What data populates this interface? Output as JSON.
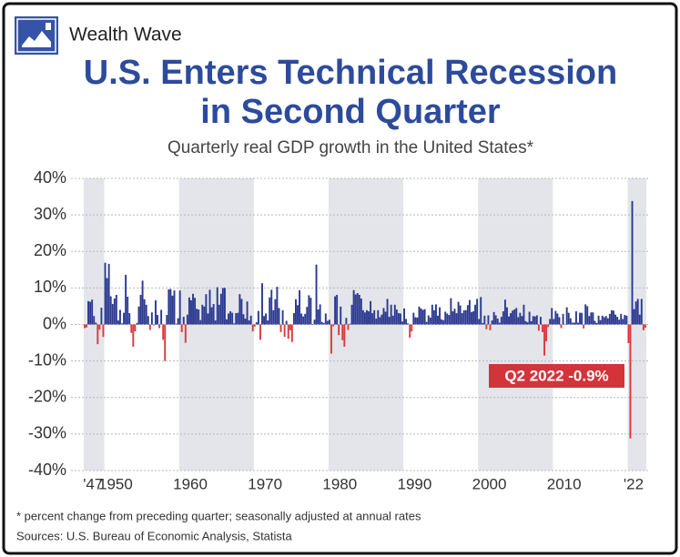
{
  "brand": "Wealth Wave",
  "chart_data": {
    "type": "bar",
    "title": [
      "U.S. Enters Technical Recession",
      "in Second Quarter"
    ],
    "subtitle": "Quarterly real GDP growth in the United States*",
    "annotation": "Q2 2022 -0.9%",
    "footnote": "* percent change from preceding quarter; seasonally adjusted at annual rates",
    "source": "Sources: U.S. Bureau of Economic Analysis, Statista",
    "color": "#2b3990",
    "negative_color": "#d93a3a",
    "grid": true,
    "xlim": [
      1947.25,
      2022.5
    ],
    "ylim": [
      -40,
      40
    ],
    "yticks": [
      {
        "value": -40,
        "label": "-40%"
      },
      {
        "value": -30,
        "label": "-30%"
      },
      {
        "value": -20,
        "label": "-20%"
      },
      {
        "value": -10,
        "label": "-10%"
      },
      {
        "value": 0,
        "label": "0%"
      },
      {
        "value": 10,
        "label": "10%"
      },
      {
        "value": 20,
        "label": "20%"
      },
      {
        "value": 30,
        "label": "30%"
      },
      {
        "value": 40,
        "label": "40%"
      }
    ],
    "xticks": [
      {
        "value": 1947,
        "label": "'47"
      },
      1950,
      1960,
      1970,
      1980,
      1990,
      2000,
      2010,
      {
        "value": 2022,
        "label": "'22"
      }
    ],
    "x": [
      1947.25,
      1947.5,
      1947.75,
      1948,
      1948.25,
      1948.5,
      1948.75,
      1949,
      1949.25,
      1949.5,
      1949.75,
      1950,
      1950.25,
      1950.5,
      1950.75,
      1951,
      1951.25,
      1951.5,
      1951.75,
      1952,
      1952.25,
      1952.5,
      1952.75,
      1953,
      1953.25,
      1953.5,
      1953.75,
      1954,
      1954.25,
      1954.5,
      1954.75,
      1955,
      1955.25,
      1955.5,
      1955.75,
      1956,
      1956.25,
      1956.5,
      1956.75,
      1957,
      1957.25,
      1957.5,
      1957.75,
      1958,
      1958.25,
      1958.5,
      1958.75,
      1959,
      1959.25,
      1959.5,
      1959.75,
      1960,
      1960.25,
      1960.5,
      1960.75,
      1961,
      1961.25,
      1961.5,
      1961.75,
      1962,
      1962.25,
      1962.5,
      1962.75,
      1963,
      1963.25,
      1963.5,
      1963.75,
      1964,
      1964.25,
      1964.5,
      1964.75,
      1965,
      1965.25,
      1965.5,
      1965.75,
      1966,
      1966.25,
      1966.5,
      1966.75,
      1967,
      1967.25,
      1967.5,
      1967.75,
      1968,
      1968.25,
      1968.5,
      1968.75,
      1969,
      1969.25,
      1969.5,
      1969.75,
      1970,
      1970.25,
      1970.5,
      1970.75,
      1971,
      1971.25,
      1971.5,
      1971.75,
      1972,
      1972.25,
      1972.5,
      1972.75,
      1973,
      1973.25,
      1973.5,
      1973.75,
      1974,
      1974.25,
      1974.5,
      1974.75,
      1975,
      1975.25,
      1975.5,
      1975.75,
      1976,
      1976.25,
      1976.5,
      1976.75,
      1977,
      1977.25,
      1977.5,
      1977.75,
      1978,
      1978.25,
      1978.5,
      1978.75,
      1979,
      1979.25,
      1979.5,
      1979.75,
      1980,
      1980.25,
      1980.5,
      1980.75,
      1981,
      1981.25,
      1981.5,
      1981.75,
      1982,
      1982.25,
      1982.5,
      1982.75,
      1983,
      1983.25,
      1983.5,
      1983.75,
      1984,
      1984.25,
      1984.5,
      1984.75,
      1985,
      1985.25,
      1985.5,
      1985.75,
      1986,
      1986.25,
      1986.5,
      1986.75,
      1987,
      1987.25,
      1987.5,
      1987.75,
      1988,
      1988.25,
      1988.5,
      1988.75,
      1989,
      1989.25,
      1989.5,
      1989.75,
      1990,
      1990.25,
      1990.5,
      1990.75,
      1991,
      1991.25,
      1991.5,
      1991.75,
      1992,
      1992.25,
      1992.5,
      1992.75,
      1993,
      1993.25,
      1993.5,
      1993.75,
      1994,
      1994.25,
      1994.5,
      1994.75,
      1995,
      1995.25,
      1995.5,
      1995.75,
      1996,
      1996.25,
      1996.5,
      1996.75,
      1997,
      1997.25,
      1997.5,
      1997.75,
      1998,
      1998.25,
      1998.5,
      1998.75,
      1999,
      1999.25,
      1999.5,
      1999.75,
      2000,
      2000.25,
      2000.5,
      2000.75,
      2001,
      2001.25,
      2001.5,
      2001.75,
      2002,
      2002.25,
      2002.5,
      2002.75,
      2003,
      2003.25,
      2003.5,
      2003.75,
      2004,
      2004.25,
      2004.5,
      2004.75,
      2005,
      2005.25,
      2005.5,
      2005.75,
      2006,
      2006.25,
      2006.5,
      2006.75,
      2007,
      2007.25,
      2007.5,
      2007.75,
      2008,
      2008.25,
      2008.5,
      2008.75,
      2009,
      2009.25,
      2009.5,
      2009.75,
      2010,
      2010.25,
      2010.5,
      2010.75,
      2011,
      2011.25,
      2011.5,
      2011.75,
      2012,
      2012.25,
      2012.5,
      2012.75,
      2013,
      2013.25,
      2013.5,
      2013.75,
      2014,
      2014.25,
      2014.5,
      2014.75,
      2015,
      2015.25,
      2015.5,
      2015.75,
      2016,
      2016.25,
      2016.5,
      2016.75,
      2017,
      2017.25,
      2017.5,
      2017.75,
      2018,
      2018.25,
      2018.5,
      2018.75,
      2019,
      2019.25,
      2019.5,
      2019.75,
      2020,
      2020.25,
      2020.5,
      2020.75,
      2021,
      2021.25,
      2021.5,
      2021.75,
      2022,
      2022.25
    ],
    "values": [
      -1.0,
      -0.8,
      6.4,
      6.2,
      6.8,
      2.3,
      0.5,
      -5.4,
      -1.4,
      4.6,
      -3.4,
      16.9,
      12.7,
      16.6,
      7.7,
      5.6,
      7.1,
      8.1,
      1.1,
      4.0,
      0.3,
      3.2,
      13.6,
      7.6,
      3.1,
      -2.3,
      -6.1,
      -1.9,
      0.4,
      4.9,
      8.1,
      12.0,
      6.9,
      5.4,
      2.3,
      -1.5,
      3.3,
      -0.3,
      6.6,
      2.6,
      -1.0,
      4.0,
      -4.2,
      -10.0,
      2.6,
      9.6,
      9.7,
      7.9,
      9.3,
      0.2,
      1.7,
      9.3,
      -2.1,
      2.1,
      -5.0,
      2.7,
      7.4,
      6.6,
      8.4,
      7.3,
      4.3,
      4.1,
      1.2,
      5.4,
      4.9,
      8.3,
      3.0,
      9.5,
      4.7,
      5.6,
      1.1,
      10.2,
      5.4,
      8.4,
      10.0,
      10.0,
      1.4,
      3.0,
      3.6,
      3.2,
      0.3,
      3.1,
      3.2,
      8.3,
      7.0,
      2.8,
      1.6,
      6.3,
      1.1,
      2.4,
      -1.9,
      -0.6,
      0.6,
      3.7,
      -4.2,
      11.3,
      2.3,
      3.0,
      1.1,
      7.4,
      9.5,
      3.9,
      6.9,
      10.3,
      4.5,
      -2.1,
      3.9,
      -3.4,
      1.0,
      -3.9,
      -1.6,
      -4.8,
      3.1,
      6.9,
      5.3,
      9.4,
      3.0,
      2.2,
      2.9,
      4.8,
      8.0,
      7.3,
      0.0,
      1.3,
      16.4,
      4.1,
      5.5,
      0.7,
      0.4,
      3.0,
      1.0,
      1.3,
      -8.0,
      -0.5,
      7.7,
      8.1,
      -2.9,
      4.9,
      -4.3,
      -6.1,
      1.8,
      -1.5,
      0.2,
      5.4,
      9.4,
      8.2,
      8.6,
      8.1,
      7.1,
      3.9,
      3.3,
      3.9,
      3.6,
      6.4,
      3.1,
      3.9,
      1.6,
      3.9,
      2.0,
      2.7,
      4.5,
      3.5,
      7.0,
      2.1,
      5.4,
      2.4,
      5.4,
      4.1,
      3.1,
      3.0,
      0.8,
      4.4,
      1.5,
      0.3,
      -3.6,
      -1.9,
      3.2,
      2.0,
      1.9,
      4.9,
      4.4,
      4.0,
      4.2,
      0.7,
      2.5,
      1.9,
      5.4,
      3.9,
      5.5,
      2.4,
      4.7,
      1.4,
      1.2,
      3.5,
      3.0,
      2.6,
      7.2,
      3.6,
      4.3,
      3.1,
      6.2,
      5.2,
      3.1,
      3.9,
      3.9,
      5.3,
      6.7,
      3.4,
      3.6,
      5.4,
      7.0,
      1.5,
      7.5,
      0.4,
      2.4,
      -1.3,
      2.5,
      -1.6,
      1.1,
      3.4,
      2.5,
      1.6,
      0.5,
      2.1,
      3.6,
      6.8,
      4.7,
      2.2,
      3.1,
      3.8,
      4.1,
      4.5,
      2.0,
      3.2,
      2.3,
      5.4,
      0.9,
      0.6,
      3.5,
      0.9,
      2.3,
      2.2,
      2.5,
      -1.7,
      2.1,
      -2.1,
      -8.5,
      -4.6,
      -0.7,
      1.5,
      4.5,
      1.5,
      3.7,
      3.0,
      2.0,
      -1.0,
      2.9,
      -0.1,
      4.7,
      3.2,
      1.7,
      0.5,
      0.5,
      3.6,
      0.5,
      3.2,
      3.2,
      -1.1,
      5.5,
      5.0,
      2.3,
      3.3,
      3.3,
      1.0,
      0.4,
      2.4,
      1.2,
      2.4,
      2.0,
      2.3,
      1.7,
      2.9,
      3.9,
      3.8,
      2.7,
      2.1,
      1.3,
      2.9,
      1.5,
      2.6,
      2.4,
      -5.1,
      -31.2,
      33.8,
      4.2,
      6.3,
      7.0,
      2.7,
      7.0,
      -1.6,
      -0.9
    ]
  }
}
